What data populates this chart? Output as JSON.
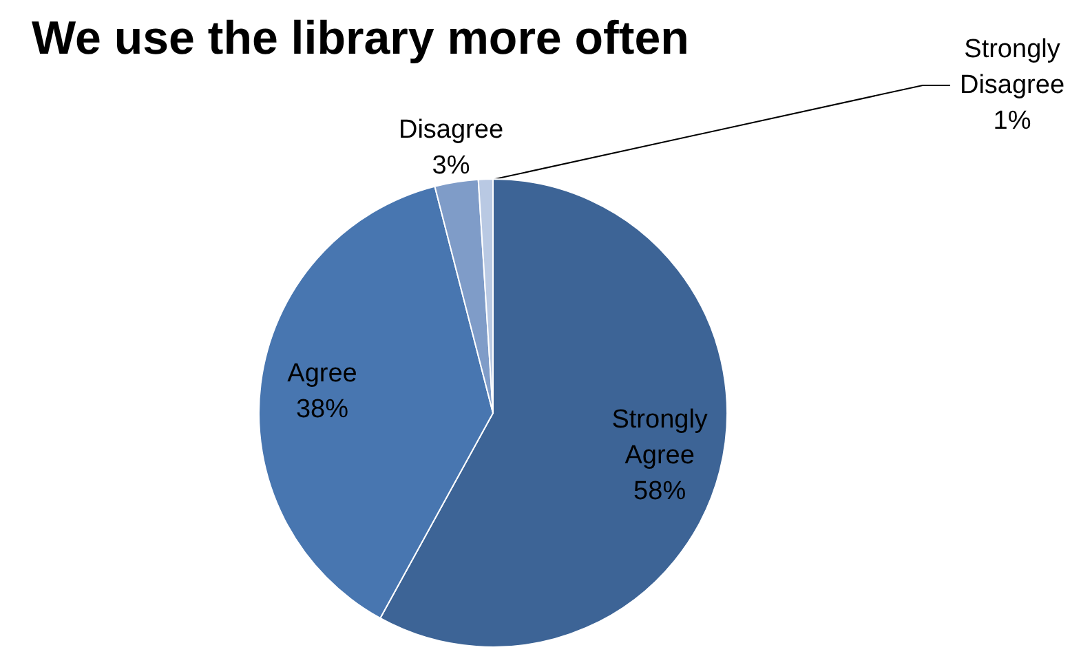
{
  "chart_data": {
    "type": "pie",
    "title": "We use the library more often",
    "categories": [
      "Strongly Agree",
      "Agree",
      "Disagree",
      "Strongly Disagree"
    ],
    "values": [
      58,
      38,
      3,
      1
    ],
    "colors": [
      "#3d6496",
      "#4876b0",
      "#7f9cc8",
      "#b9c9e3"
    ],
    "value_labels": [
      "58%",
      "38%",
      "3%",
      "1%"
    ],
    "legend": false
  }
}
